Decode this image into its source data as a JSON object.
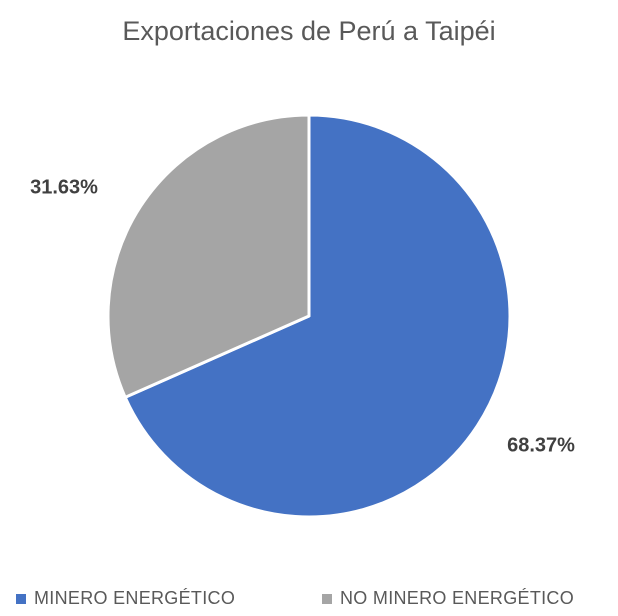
{
  "chart_data": {
    "type": "pie",
    "title": "Exportaciones de Perú a Taipéi",
    "slices": [
      {
        "label": "MINERO ENERGÉTICO",
        "value": 68.37,
        "display": "68.37%",
        "color": "#4472C4"
      },
      {
        "label": "NO MINERO ENERGÉTICO",
        "value": 31.63,
        "display": "31.63%",
        "color": "#A5A5A5"
      }
    ],
    "start_angle_deg": 0,
    "direction": "clockwise",
    "legend_position": "bottom",
    "slice_border_color": "#FFFFFF"
  }
}
